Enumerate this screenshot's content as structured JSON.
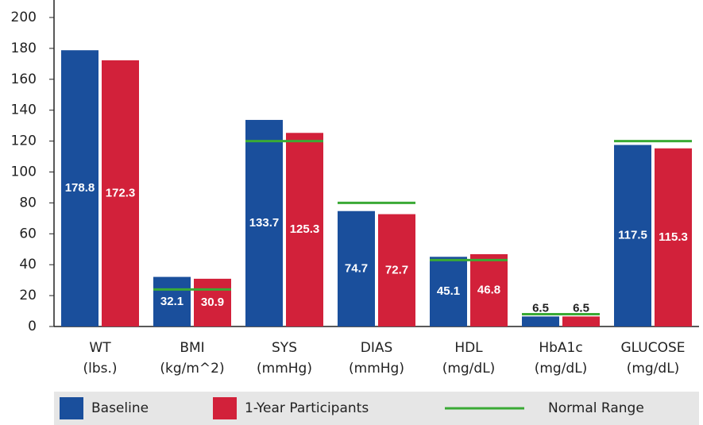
{
  "chart_data": {
    "type": "bar",
    "categories": [
      [
        "WT",
        "(lbs.)"
      ],
      [
        "BMI",
        "(kg/m^2)"
      ],
      [
        "SYS",
        "(mmHg)"
      ],
      [
        "DIAS",
        "(mmHg)"
      ],
      [
        "HDL",
        "(mg/dL)"
      ],
      [
        "HbA1c",
        "(mg/dL)"
      ],
      [
        "GLUCOSE",
        "(mg/dL)"
      ]
    ],
    "series": [
      {
        "name": "Baseline",
        "color": "#1a4f9c",
        "values": [
          178.8,
          32.1,
          133.7,
          74.7,
          45.1,
          6.5,
          117.5
        ]
      },
      {
        "name": "1-Year Participants",
        "color": "#d2213a",
        "values": [
          172.3,
          30.9,
          125.3,
          72.7,
          46.8,
          6.5,
          115.3
        ]
      }
    ],
    "normal_range": {
      "name": "Normal Range",
      "color": "#3aaa35",
      "values": [
        null,
        24,
        120,
        80,
        43,
        8,
        120
      ]
    },
    "ylim": [
      0,
      200
    ],
    "yticks": [
      0,
      20,
      40,
      60,
      80,
      100,
      120,
      140,
      160,
      180,
      200
    ]
  }
}
